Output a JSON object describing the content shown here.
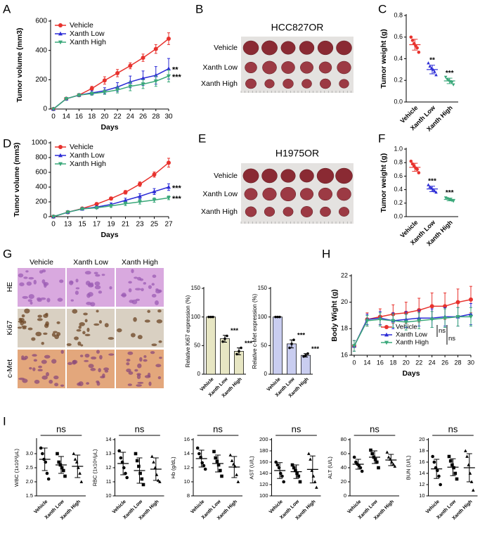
{
  "photo_panels": [
    {
      "panel": "B",
      "title": "HCC827OR",
      "rows": [
        "Vehicle",
        "Xanth Low",
        "Xanth High"
      ]
    },
    {
      "panel": "E",
      "title": "H1975OR",
      "rows": [
        "Vehicle",
        "Xanth Low",
        "Xanth High"
      ]
    },
    {
      "panel": "G",
      "columns": [
        "Vehicle",
        "Xanth Low",
        "Xanth High"
      ],
      "rows": [
        "HE",
        "Ki67",
        "c-Met"
      ]
    }
  ],
  "chart_data": [
    {
      "type": "line",
      "panel": "A",
      "y_label": "Tumor volume (mm3)",
      "x_label": "Days",
      "legend": "upper left",
      "categories": [
        "0",
        "14",
        "16",
        "18",
        "20",
        "22",
        "24",
        "26",
        "28",
        "30"
      ],
      "ylim": [
        0,
        600
      ],
      "yticks": [
        0,
        200,
        400,
        600
      ],
      "series": [
        {
          "name": "Vehicle",
          "color": "#e8322d",
          "marker": "circle",
          "values": [
            0,
            70,
            95,
            140,
            195,
            245,
            295,
            350,
            410,
            480
          ],
          "errors": [
            0,
            5,
            5,
            15,
            25,
            25,
            20,
            25,
            30,
            40
          ]
        },
        {
          "name": "Xanth Low",
          "color": "#2b2bd6",
          "marker": "triangle-up",
          "values": [
            0,
            70,
            95,
            110,
            125,
            150,
            185,
            210,
            230,
            275
          ],
          "errors": [
            0,
            5,
            8,
            15,
            20,
            30,
            40,
            50,
            60,
            70
          ],
          "significance": "**"
        },
        {
          "name": "Xanth High",
          "color": "#3aa87a",
          "marker": "triangle-down",
          "values": [
            0,
            70,
            95,
            105,
            115,
            130,
            155,
            170,
            190,
            225
          ],
          "errors": [
            0,
            5,
            8,
            10,
            15,
            20,
            30,
            30,
            35,
            40
          ],
          "significance": "***"
        }
      ]
    },
    {
      "type": "dot",
      "panel": "C",
      "y_label": "Tumor weight (g)",
      "categories": [
        "Vehicle",
        "Xanth Low",
        "Xanth High"
      ],
      "colors": [
        "#e8322d",
        "#2b2bd6",
        "#3aa87a"
      ],
      "markers": [
        "circle",
        "triangle-up",
        "triangle-down"
      ],
      "ylim": [
        0,
        0.8
      ],
      "yticks": [
        {
          "value": 0,
          "label": "0.0"
        },
        0.2,
        0.4,
        0.6,
        0.8
      ],
      "points": [
        [
          0.6,
          0.57,
          0.54,
          0.52,
          0.5,
          0.46
        ],
        [
          0.36,
          0.33,
          0.31,
          0.3,
          0.28,
          0.25
        ],
        [
          0.23,
          0.21,
          0.2,
          0.19,
          0.18,
          0.16
        ]
      ],
      "means": [
        0.53,
        0.3,
        0.195
      ],
      "errors": [
        0.05,
        0.04,
        0.025
      ],
      "significance": [
        null,
        "**",
        "***"
      ]
    },
    {
      "type": "line",
      "panel": "D",
      "y_label": "Tumor volume (mm3)",
      "x_label": "Days",
      "legend": "upper left",
      "categories": [
        "0",
        "13",
        "15",
        "17",
        "19",
        "21",
        "23",
        "25",
        "27"
      ],
      "ylim": [
        0,
        1000
      ],
      "yticks": [
        0,
        200,
        400,
        600,
        800,
        1000
      ],
      "series": [
        {
          "name": "Vehicle",
          "color": "#e8322d",
          "marker": "circle",
          "values": [
            0,
            60,
            110,
            170,
            245,
            330,
            440,
            570,
            730
          ],
          "errors": [
            0,
            10,
            15,
            20,
            20,
            25,
            30,
            35,
            60
          ]
        },
        {
          "name": "Xanth Low",
          "color": "#2b2bd6",
          "marker": "triangle-up",
          "values": [
            0,
            60,
            105,
            130,
            165,
            220,
            275,
            340,
            400
          ],
          "errors": [
            0,
            10,
            15,
            15,
            20,
            30,
            35,
            40,
            45
          ],
          "significance": "***"
        },
        {
          "name": "Xanth High",
          "color": "#3aa87a",
          "marker": "triangle-down",
          "values": [
            0,
            60,
            105,
            120,
            145,
            175,
            200,
            225,
            255
          ],
          "errors": [
            0,
            10,
            10,
            15,
            20,
            25,
            30,
            30,
            25
          ],
          "significance": "***"
        }
      ]
    },
    {
      "type": "dot",
      "panel": "F",
      "y_label": "Tumor weight (g)",
      "categories": [
        "Vehicle",
        "Xanth Low",
        "Xanth High"
      ],
      "colors": [
        "#e8322d",
        "#2b2bd6",
        "#3aa87a"
      ],
      "markers": [
        "circle",
        "triangle-up",
        "triangle-down"
      ],
      "ylim": [
        0,
        1
      ],
      "yticks": [
        {
          "value": 0,
          "label": "0.0"
        },
        0.2,
        0.4,
        0.6,
        0.8,
        {
          "value": 1,
          "label": "1.0"
        }
      ],
      "points": [
        [
          0.82,
          0.78,
          0.75,
          0.72,
          0.7,
          0.65
        ],
        [
          0.47,
          0.44,
          0.42,
          0.4,
          0.38,
          0.36
        ],
        [
          0.28,
          0.27,
          0.26,
          0.25,
          0.24,
          0.23
        ]
      ],
      "means": [
        0.73,
        0.41,
        0.255
      ],
      "errors": [
        0.06,
        0.04,
        0.02
      ],
      "significance": [
        null,
        "***",
        "***"
      ]
    },
    {
      "type": "bar",
      "y_label": "Relative Ki67 expression (%)",
      "categories": [
        "Vehicle",
        "Xanth Low",
        "Xanth High"
      ],
      "color": "#e7e6c3",
      "ylim": [
        0,
        150
      ],
      "yticks": [
        0,
        50,
        100,
        150
      ],
      "values": [
        100,
        62,
        40
      ],
      "errors": [
        0,
        6,
        6
      ],
      "points": [
        [
          100,
          100,
          100
        ],
        [
          57,
          62,
          67
        ],
        [
          35,
          40,
          46
        ]
      ],
      "significance": [
        null,
        "***",
        "***"
      ]
    },
    {
      "type": "bar",
      "y_label": "Relative c-Met expression (%)",
      "categories": [
        "Vehicle",
        "Xanth Low",
        "Xanth High"
      ],
      "color": "#c9cdf0",
      "ylim": [
        0,
        150
      ],
      "yticks": [
        0,
        50,
        100,
        150
      ],
      "values": [
        100,
        53,
        33
      ],
      "errors": [
        0,
        7,
        3
      ],
      "points": [
        [
          100,
          100,
          100
        ],
        [
          46,
          53,
          60
        ],
        [
          31,
          33,
          36
        ]
      ],
      "significance": [
        null,
        "***",
        "***"
      ]
    },
    {
      "type": "line",
      "panel": "H",
      "y_label": "Body Wight (g)",
      "x_label": "Days",
      "legend": "lower right",
      "categories": [
        "0",
        "14",
        "16",
        "18",
        "20",
        "22",
        "24",
        "26",
        "28",
        "30"
      ],
      "ylim": [
        16,
        22
      ],
      "yticks": [
        16,
        18,
        20,
        22
      ],
      "series": [
        {
          "name": "Vehicle",
          "color": "#e8322d",
          "marker": "circle",
          "values": [
            16.7,
            18.7,
            18.9,
            19.1,
            19.2,
            19.4,
            19.7,
            19.7,
            20.0,
            20.2
          ],
          "errors": [
            0.4,
            0.5,
            0.6,
            0.7,
            0.8,
            0.9,
            1.0,
            1.0,
            1.0,
            1.0
          ]
        },
        {
          "name": "Xanth Low",
          "color": "#2b2bd6",
          "marker": "triangle-up",
          "values": [
            16.7,
            18.7,
            18.8,
            18.6,
            18.7,
            18.8,
            18.8,
            18.9,
            18.9,
            19.1
          ],
          "errors": [
            0.4,
            0.4,
            0.5,
            0.6,
            0.6,
            0.6,
            0.7,
            0.7,
            0.7,
            0.8
          ],
          "significance": "ns"
        },
        {
          "name": "Xanth High",
          "color": "#3aa87a",
          "marker": "triangle-down",
          "values": [
            16.7,
            18.6,
            18.7,
            18.6,
            18.5,
            18.6,
            18.7,
            18.8,
            18.9,
            18.9
          ],
          "errors": [
            0.4,
            0.4,
            0.5,
            0.5,
            0.6,
            0.6,
            0.6,
            0.7,
            0.7,
            0.7
          ],
          "significance": "ns"
        }
      ]
    },
    {
      "type": "dot",
      "panel": "I",
      "y_label": "WBC (1x10³/μL)",
      "categories": [
        "Vehicle",
        "Xanth Low",
        "Xanth High"
      ],
      "colors": [
        "#000000",
        "#000000",
        "#000000"
      ],
      "markers": [
        "circle",
        "square",
        "triangle-up"
      ],
      "ylim": [
        1.5,
        3.5
      ],
      "yticks": [
        1.5,
        {
          "value": 2,
          "label": "2.0"
        },
        2.5,
        {
          "value": 3,
          "label": "3.0"
        }
      ],
      "points": [
        [
          3.2,
          3.0,
          2.8,
          2.7,
          2.3,
          2.1
        ],
        [
          3.0,
          2.7,
          2.6,
          2.5,
          2.4,
          2.2
        ],
        [
          3.0,
          2.8,
          2.7,
          2.5,
          2.3,
          2.0
        ]
      ],
      "means": [
        2.8,
        2.6,
        2.55
      ],
      "errors": [
        0.4,
        0.3,
        0.4
      ],
      "significance": "ns"
    },
    {
      "type": "dot",
      "y_label": "RBC (1x10⁶/μL)",
      "categories": [
        "Vehicle",
        "Xanth Low",
        "Xanth High"
      ],
      "colors": [
        "#000000",
        "#000000",
        "#000000"
      ],
      "markers": [
        "circle",
        "square",
        "triangle-up"
      ],
      "ylim": [
        10,
        14
      ],
      "yticks": [
        10,
        11,
        12,
        13,
        14
      ],
      "points": [
        [
          13.2,
          12.7,
          12.4,
          12.0,
          11.6,
          11.3
        ],
        [
          13.0,
          12.5,
          12.1,
          11.6,
          11.2,
          10.8
        ],
        [
          12.8,
          12.4,
          12.0,
          11.5,
          11.1,
          11.0
        ]
      ],
      "means": [
        12.3,
        11.8,
        11.9
      ],
      "errors": [
        0.8,
        0.9,
        0.8
      ],
      "significance": "ns"
    },
    {
      "type": "dot",
      "y_label": "Hb (g/dL)",
      "categories": [
        "Vehicle",
        "Xanth Low",
        "Xanth High"
      ],
      "colors": [
        "#000000",
        "#000000",
        "#000000"
      ],
      "markers": [
        "circle",
        "square",
        "triangle-up"
      ],
      "ylim": [
        8,
        16
      ],
      "yticks": [
        8,
        10,
        12,
        14,
        16
      ],
      "points": [
        [
          14.8,
          14.0,
          13.5,
          12.7,
          12.3,
          11.8
        ],
        [
          14.3,
          13.4,
          12.9,
          12.4,
          11.6,
          10.8
        ],
        [
          13.8,
          13.0,
          12.5,
          12.2,
          11.0,
          10.0
        ]
      ],
      "means": [
        13.3,
        12.6,
        12.1
      ],
      "errors": [
        1.2,
        1.2,
        1.5
      ],
      "significance": "ns"
    },
    {
      "type": "dot",
      "y_label": "AST (U/L)",
      "categories": [
        "Vehicle",
        "Xanth Low",
        "Xanth High"
      ],
      "colors": [
        "#000000",
        "#000000",
        "#000000"
      ],
      "markers": [
        "circle",
        "square",
        "triangle-up"
      ],
      "ylim": [
        100,
        200
      ],
      "yticks": [
        100,
        120,
        140,
        160,
        180,
        200
      ],
      "points": [
        [
          160,
          155,
          150,
          140,
          135,
          125
        ],
        [
          155,
          150,
          145,
          140,
          135,
          125
        ],
        [
          175,
          165,
          145,
          135,
          125,
          115
        ]
      ],
      "means": [
        145,
        143,
        147
      ],
      "errors": [
        14,
        12,
        24
      ],
      "significance": "ns"
    },
    {
      "type": "dot",
      "y_label": "ALT (U/L)",
      "categories": [
        "Vehicle",
        "Xanth Low",
        "Xanth High"
      ],
      "colors": [
        "#000000",
        "#000000",
        "#000000"
      ],
      "markers": [
        "circle",
        "square",
        "triangle-up"
      ],
      "ylim": [
        0,
        80
      ],
      "yticks": [
        0,
        20,
        40,
        60,
        80
      ],
      "points": [
        [
          55,
          48,
          45,
          43,
          40,
          35
        ],
        [
          65,
          60,
          55,
          52,
          48,
          40
        ],
        [
          62,
          55,
          52,
          48,
          45,
          42
        ]
      ],
      "means": [
        45,
        55,
        51
      ],
      "errors": [
        7,
        9,
        8
      ],
      "significance": "ns"
    },
    {
      "type": "dot",
      "y_label": "BUN (U/L)",
      "categories": [
        "Vehicle",
        "Xanth Low",
        "Xanth High"
      ],
      "colors": [
        "#000000",
        "#000000",
        "#000000"
      ],
      "markers": [
        "circle",
        "square",
        "triangle-up"
      ],
      "ylim": [
        10,
        20
      ],
      "yticks": [
        10,
        12,
        14,
        16,
        18,
        20
      ],
      "points": [
        [
          17,
          16,
          15,
          14.5,
          13.5,
          12
        ],
        [
          17,
          16.2,
          15.5,
          15,
          14,
          13
        ],
        [
          18,
          17,
          15.5,
          14,
          12.5,
          11
        ]
      ],
      "means": [
        14.8,
        15.1,
        15
      ],
      "errors": [
        1.7,
        1.5,
        2.5
      ],
      "significance": "ns"
    }
  ]
}
